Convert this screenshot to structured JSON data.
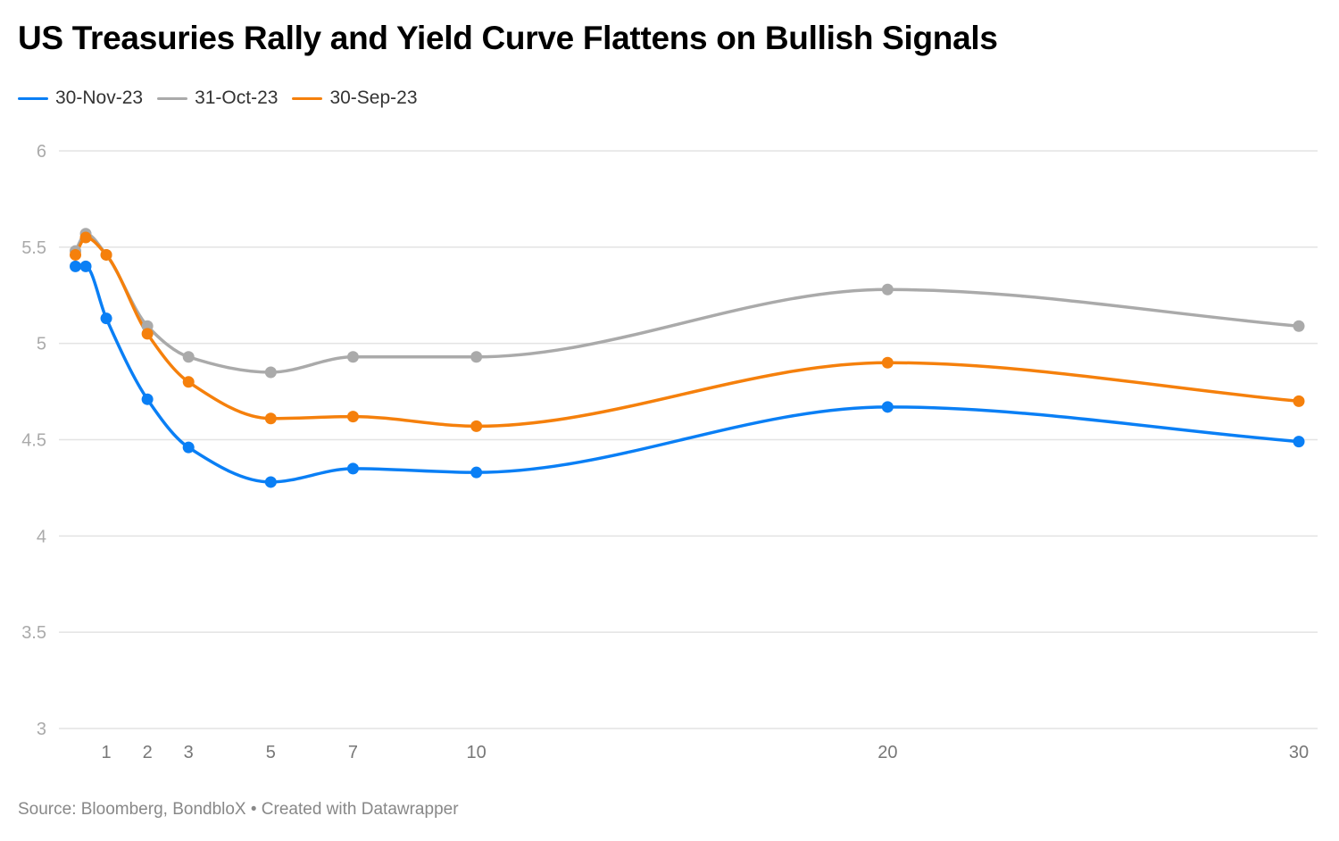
{
  "title": "US Treasuries Rally and Yield Curve Flattens on Bullish Signals",
  "source": "Source: Bloomberg, BondbloX • Created with Datawrapper",
  "chart_data": {
    "type": "line",
    "title": "US Treasuries Rally and Yield Curve Flattens on Bullish Signals",
    "xlabel": "",
    "ylabel": "",
    "x": [
      0.25,
      0.5,
      1,
      2,
      3,
      5,
      7,
      10,
      20,
      30
    ],
    "x_ticks": [
      1,
      2,
      3,
      5,
      7,
      10,
      20,
      30
    ],
    "x_tick_labels": [
      "1",
      "2",
      "3",
      "5",
      "7",
      "10",
      "20",
      "30"
    ],
    "xlim": [
      0,
      30
    ],
    "ylim": [
      3,
      6
    ],
    "y_ticks": [
      3,
      3.5,
      4,
      4.5,
      5,
      5.5,
      6
    ],
    "y_tick_labels": [
      "3",
      "3.5",
      "4",
      "4.5",
      "5",
      "5.5",
      "6"
    ],
    "grid": true,
    "legend_position": "top-left",
    "series": [
      {
        "name": "31-Oct-23",
        "color": "#aaaaaa",
        "values": [
          5.48,
          5.57,
          5.46,
          5.09,
          4.93,
          4.85,
          4.93,
          4.93,
          5.28,
          5.09
        ]
      },
      {
        "name": "30-Sep-23",
        "color": "#f5800c",
        "values": [
          5.46,
          5.55,
          5.46,
          5.05,
          4.8,
          4.61,
          4.62,
          4.57,
          4.9,
          4.7
        ]
      },
      {
        "name": "30-Nov-23",
        "color": "#0a7ff5",
        "values": [
          5.4,
          5.4,
          5.13,
          4.71,
          4.46,
          4.28,
          4.35,
          4.33,
          4.67,
          4.49
        ]
      }
    ]
  },
  "legend": [
    {
      "label": "30-Nov-23",
      "color": "#0a7ff5"
    },
    {
      "label": "31-Oct-23",
      "color": "#aaaaaa"
    },
    {
      "label": "30-Sep-23",
      "color": "#f5800c"
    }
  ]
}
